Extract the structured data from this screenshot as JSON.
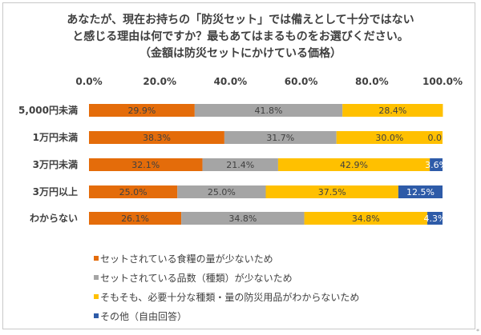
{
  "title_lines": [
    "あなたが、現在お持ちの「防災セット」では備えとして十分ではない",
    "と感じる理由は何ですか？最もあてはまるものをお選びください。",
    "（金額は防災セットにかけている価格）"
  ],
  "corner_mark": "*",
  "colors": {
    "s1": "#E46C0A",
    "s2": "#A5A5A5",
    "s3": "#FFC000",
    "s4": "#2E5BA8",
    "label_dark": "#404040",
    "label_light": "#ffffff"
  },
  "chart_data": {
    "type": "bar",
    "orientation": "horizontal",
    "stacked": true,
    "categories": [
      "5,000円未満",
      "1万円未満",
      "3万円未満",
      "3万円以上",
      "わからない"
    ],
    "x_ticks": [
      "0.0%",
      "20.0%",
      "40.0%",
      "60.0%",
      "80.0%",
      "100.0%"
    ],
    "xlim": [
      0,
      100
    ],
    "grid": false,
    "legend_position": "bottom",
    "series": [
      {
        "name": "セットされている食糧の量が少ないため",
        "values": [
          29.9,
          38.3,
          32.1,
          25.0,
          26.1
        ],
        "labels": [
          "29.9%",
          "38.3%",
          "32.1%",
          "25.0%",
          "26.1%"
        ]
      },
      {
        "name": "セットされている品数（種類）が少ないため",
        "values": [
          41.8,
          31.7,
          21.4,
          25.0,
          34.8
        ],
        "labels": [
          "41.8%",
          "31.7%",
          "21.4%",
          "25.0%",
          "34.8%"
        ]
      },
      {
        "name": "そもそも、必要十分な種類・量の防災用品がわからないため",
        "values": [
          28.4,
          30.0,
          42.9,
          37.5,
          34.8
        ],
        "labels": [
          "28.4%",
          "30.0%",
          "42.9%",
          "37.5%",
          "34.8%"
        ]
      },
      {
        "name": "その他（自由回答）",
        "values": [
          0.0,
          0.0,
          3.6,
          12.5,
          4.3
        ],
        "labels": [
          "",
          "0.0",
          "3.6%",
          "12.5%",
          "4.3%"
        ]
      }
    ]
  }
}
